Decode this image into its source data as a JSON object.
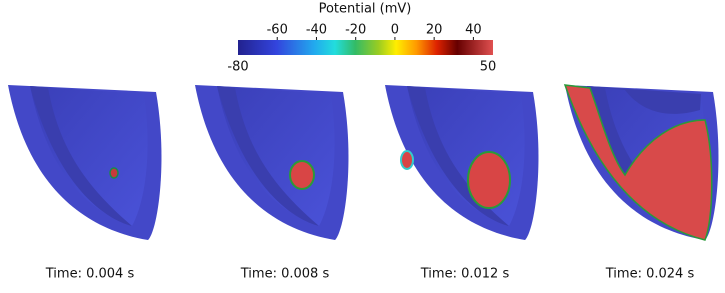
{
  "colorbar": {
    "title": "Potential (mV)",
    "range": [
      -80,
      50
    ],
    "ticks": [
      -60,
      -40,
      -20,
      0,
      20,
      40
    ]
  },
  "panels": [
    {
      "label": "Time:  0.004 s"
    },
    {
      "label": "Time:  0.008 s"
    },
    {
      "label": "Time:  0.012 s"
    },
    {
      "label": "Time:  0.024 s"
    }
  ]
}
